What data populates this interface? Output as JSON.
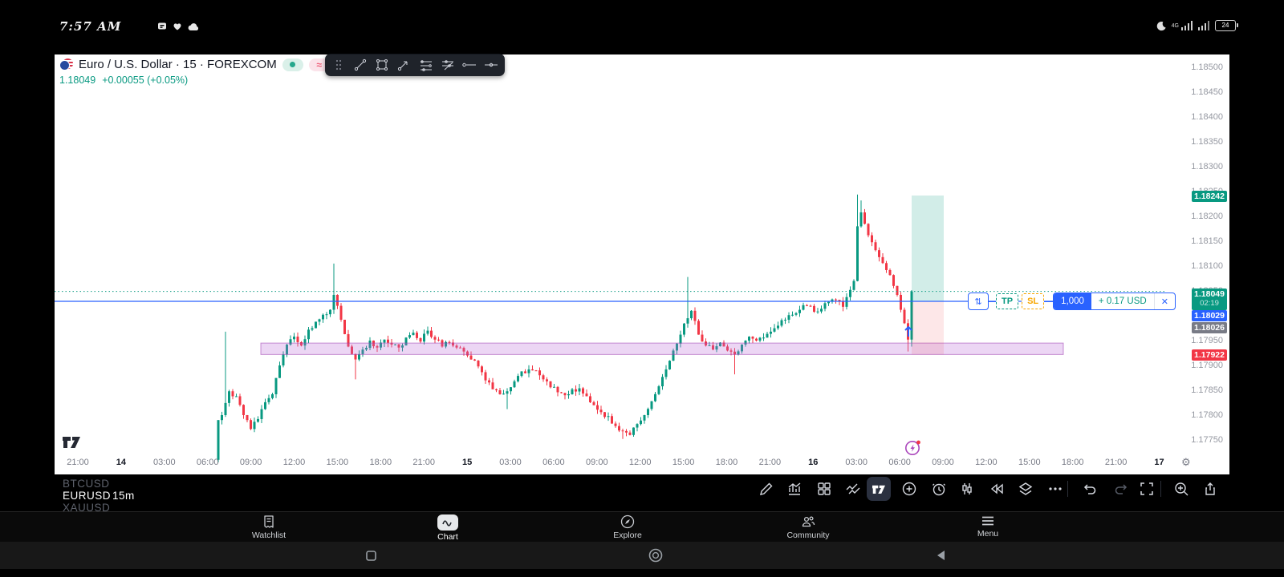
{
  "status_bar": {
    "time": "7:57 AM",
    "battery_percent": "24",
    "network": "4G",
    "left_icons": [
      "message-icon",
      "heart-icon",
      "cloud-icon"
    ],
    "right_icons": [
      "moon-icon",
      "signal-icon",
      "signal-icon",
      "battery-icon"
    ]
  },
  "chart_header": {
    "title": "Euro / U.S. Dollar · 15 · FOREXCOM",
    "last_price": "1.18049",
    "change": "+0.00055 (+0.05%)",
    "mode_pill": "≈"
  },
  "float_toolbar": {
    "icons": [
      "drag-handle",
      "trend-line",
      "rectangle",
      "arrow",
      "parallel-lines",
      "flat-lines",
      "horizontal-line",
      "horizontal-ray"
    ]
  },
  "price_labels": {
    "current_price": "1.18049",
    "countdown": "02:19",
    "entry_price": "1.18029",
    "prev_price": "1.18026",
    "tp_price": "1.18242",
    "sl_price": "1.17922"
  },
  "position_tool": {
    "reverse_glyph": "⇅",
    "tp_label": "TP",
    "sl_label": "SL",
    "quantity": "1,000",
    "profit": "+ 0.17 USD",
    "close_glyph": "✕"
  },
  "ticker_strip": [
    {
      "symbol": "BTCUSD",
      "tf": ""
    },
    {
      "symbol": "EURUSD",
      "tf": "15m"
    },
    {
      "symbol": "XAUUSD",
      "tf": ""
    }
  ],
  "chart_toolbar_icons": [
    "draw",
    "indicators",
    "layouts",
    "compare",
    "tradingview",
    "add",
    "alerts",
    "trading",
    "replay",
    "object-tree",
    "more",
    "undo",
    "redo",
    "fullscreen",
    "zoom-in",
    "share"
  ],
  "bottom_nav": [
    {
      "label": "Watchlist"
    },
    {
      "label": "Chart"
    },
    {
      "label": "Explore"
    },
    {
      "label": "Community"
    },
    {
      "label": "Menu"
    }
  ],
  "android_nav_icons": [
    "recents-square-icon",
    "home-circle-icon",
    "back-triangle-icon"
  ],
  "colors": {
    "up": "#089981",
    "down": "#f23645",
    "entry_blue": "#2962ff",
    "sl_orange": "#f7a600",
    "zone_purple": "#9c27b0",
    "current_teal": "#089981"
  },
  "chart_data": {
    "type": "candlestick",
    "symbol": "EURUSD",
    "interval": "15",
    "exchange": "FOREXCOM",
    "price_ticks": [
      "1.18500",
      "1.18450",
      "1.18400",
      "1.18350",
      "1.18300",
      "1.18250",
      "1.18200",
      "1.18150",
      "1.18100",
      "1.18050",
      "1.18000",
      "1.17950",
      "1.17900",
      "1.17850",
      "1.17800",
      "1.17750"
    ],
    "time_ticks": [
      {
        "t": "21:00",
        "d": false
      },
      {
        "t": "14",
        "d": true
      },
      {
        "t": "03:00",
        "d": false
      },
      {
        "t": "06:00",
        "d": false
      },
      {
        "t": "09:00",
        "d": false
      },
      {
        "t": "12:00",
        "d": false
      },
      {
        "t": "15:00",
        "d": false
      },
      {
        "t": "18:00",
        "d": false
      },
      {
        "t": "21:00",
        "d": false
      },
      {
        "t": "15",
        "d": true
      },
      {
        "t": "03:00",
        "d": false
      },
      {
        "t": "06:00",
        "d": false
      },
      {
        "t": "09:00",
        "d": false
      },
      {
        "t": "12:00",
        "d": false
      },
      {
        "t": "15:00",
        "d": false
      },
      {
        "t": "18:00",
        "d": false
      },
      {
        "t": "21:00",
        "d": false
      },
      {
        "t": "16",
        "d": true
      },
      {
        "t": "03:00",
        "d": false
      },
      {
        "t": "06:00",
        "d": false
      },
      {
        "t": "09:00",
        "d": false
      },
      {
        "t": "12:00",
        "d": false
      },
      {
        "t": "15:00",
        "d": false
      },
      {
        "t": "18:00",
        "d": false
      },
      {
        "t": "21:00",
        "d": false
      },
      {
        "t": "17",
        "d": true
      }
    ],
    "levels": {
      "current": 1.18049,
      "entry": 1.18029,
      "prev_close": 1.18026,
      "take_profit": 1.18242,
      "stop_loss": 1.17922
    },
    "demand_zone": {
      "price_top": 1.17945,
      "price_bottom": 1.17922
    },
    "waypoints": [
      [
        0,
        1.1779
      ],
      [
        1,
        1.178
      ],
      [
        3,
        1.17848
      ],
      [
        5,
        1.17838
      ],
      [
        7,
        1.178
      ],
      [
        9,
        1.17772
      ],
      [
        11,
        1.17792
      ],
      [
        13,
        1.17826
      ],
      [
        15,
        1.17842
      ],
      [
        17,
        1.179
      ],
      [
        19,
        1.17942
      ],
      [
        21,
        1.17958
      ],
      [
        23,
        1.1794
      ],
      [
        25,
        1.17972
      ],
      [
        27,
        1.17988
      ],
      [
        29,
        1.18002
      ],
      [
        31,
        1.18012
      ],
      [
        32,
        1.18042
      ],
      [
        33,
        1.1802
      ],
      [
        34,
        1.17992
      ],
      [
        36,
        1.17938
      ],
      [
        38,
        1.17912
      ],
      [
        40,
        1.17932
      ],
      [
        42,
        1.1795
      ],
      [
        44,
        1.17936
      ],
      [
        46,
        1.17952
      ],
      [
        48,
        1.17942
      ],
      [
        50,
        1.17936
      ],
      [
        52,
        1.17956
      ],
      [
        54,
        1.17966
      ],
      [
        56,
        1.17948
      ],
      [
        58,
        1.1797
      ],
      [
        60,
        1.17952
      ],
      [
        62,
        1.17938
      ],
      [
        64,
        1.17946
      ],
      [
        66,
        1.17936
      ],
      [
        68,
        1.17928
      ],
      [
        70,
        1.17912
      ],
      [
        72,
        1.17898
      ],
      [
        74,
        1.1787
      ],
      [
        76,
        1.17852
      ],
      [
        78,
        1.17842
      ],
      [
        80,
        1.17848
      ],
      [
        82,
        1.17868
      ],
      [
        84,
        1.17888
      ],
      [
        86,
        1.17892
      ],
      [
        88,
        1.1789
      ],
      [
        90,
        1.17872
      ],
      [
        92,
        1.17856
      ],
      [
        94,
        1.17846
      ],
      [
        96,
        1.1784
      ],
      [
        98,
        1.17852
      ],
      [
        100,
        1.17854
      ],
      [
        102,
        1.17838
      ],
      [
        104,
        1.1782
      ],
      [
        106,
        1.17806
      ],
      [
        108,
        1.17798
      ],
      [
        110,
        1.17778
      ],
      [
        112,
        1.17768
      ],
      [
        114,
        1.1776
      ],
      [
        116,
        1.17782
      ],
      [
        118,
        1.178
      ],
      [
        120,
        1.17828
      ],
      [
        122,
        1.17858
      ],
      [
        124,
        1.17892
      ],
      [
        126,
        1.1793
      ],
      [
        128,
        1.17962
      ],
      [
        130,
        1.17995
      ],
      [
        131,
        1.1801
      ],
      [
        133,
        1.17962
      ],
      [
        135,
        1.1794
      ],
      [
        137,
        1.17932
      ],
      [
        139,
        1.17946
      ],
      [
        141,
        1.1793
      ],
      [
        143,
        1.17922
      ],
      [
        145,
        1.17942
      ],
      [
        147,
        1.17958
      ],
      [
        149,
        1.1795
      ],
      [
        151,
        1.17956
      ],
      [
        153,
        1.17968
      ],
      [
        155,
        1.1798
      ],
      [
        157,
        1.17992
      ],
      [
        159,
        1.18002
      ],
      [
        161,
        1.18012
      ],
      [
        163,
        1.1802
      ],
      [
        165,
        1.18008
      ],
      [
        167,
        1.18014
      ],
      [
        169,
        1.18028
      ],
      [
        171,
        1.18032
      ],
      [
        173,
        1.18018
      ],
      [
        175,
        1.18052
      ],
      [
        176,
        1.1807
      ],
      [
        177,
        1.1818
      ],
      [
        178,
        1.18208
      ],
      [
        179,
        1.18185
      ],
      [
        180,
        1.18162
      ],
      [
        181,
        1.18148
      ],
      [
        182,
        1.18132
      ],
      [
        183,
        1.18118
      ],
      [
        184,
        1.18106
      ],
      [
        185,
        1.18092
      ],
      [
        186,
        1.18082
      ],
      [
        187,
        1.1806
      ],
      [
        188,
        1.18042
      ],
      [
        189,
        1.18012
      ],
      [
        190,
        1.17985
      ],
      [
        191,
        1.17952
      ],
      [
        192,
        1.18049
      ]
    ],
    "wick_overrides": {
      "0": {
        "o": 1.1771,
        "l": 1.17705
      },
      "2": {
        "h": 1.17968
      },
      "32": {
        "h": 1.18105
      },
      "38": {
        "l": 1.17872
      },
      "80": {
        "l": 1.17812
      },
      "112": {
        "l": 1.17752
      },
      "130": {
        "h": 1.18078
      },
      "143": {
        "l": 1.17882
      },
      "177": {
        "h": 1.18244
      },
      "178": {
        "h": 1.18232
      },
      "191": {
        "l": 1.17928
      },
      "192": {
        "l": 1.17938
      }
    }
  }
}
